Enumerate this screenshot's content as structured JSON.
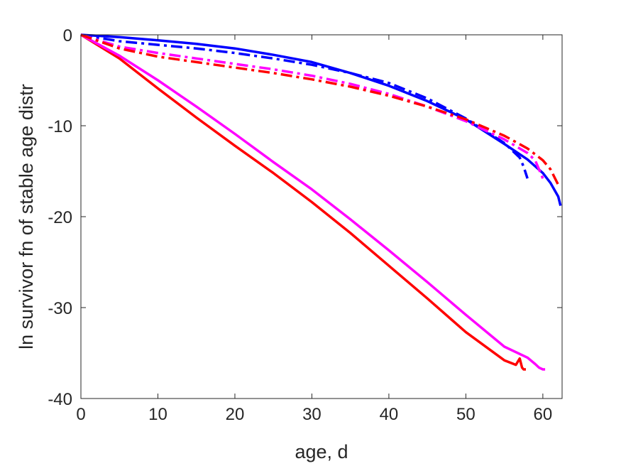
{
  "chart_data": {
    "type": "line",
    "title": "",
    "xlabel": "age, d",
    "ylabel": "ln survivor fn of stable age distr",
    "xlim": [
      0,
      62.5
    ],
    "ylim": [
      -40,
      0
    ],
    "xticks": [
      0,
      10,
      20,
      30,
      40,
      50,
      60
    ],
    "yticks": [
      0,
      -10,
      -20,
      -30,
      -40
    ],
    "xtick_labels": [
      "0",
      "10",
      "20",
      "30",
      "40",
      "50",
      "60"
    ],
    "ytick_labels": [
      "0",
      "-10",
      "-20",
      "-30",
      "-40"
    ],
    "grid": false,
    "legend": "none",
    "series": [
      {
        "color": "#ff0000",
        "style": "solid",
        "x": [
          0,
          5,
          10,
          15,
          20,
          25,
          30,
          35,
          40,
          45,
          50,
          55,
          56.5,
          57,
          57.3,
          57.5,
          57.8
        ],
        "y": [
          0,
          -2.6,
          -5.9,
          -9.1,
          -12.2,
          -15.2,
          -18.4,
          -21.8,
          -25.4,
          -29.0,
          -32.7,
          -35.8,
          -36.3,
          -35.6,
          -36.6,
          -36.8,
          -36.8
        ]
      },
      {
        "color": "#ff00ff",
        "style": "solid",
        "x": [
          0,
          5,
          10,
          15,
          20,
          25,
          30,
          35,
          40,
          45,
          50,
          55,
          58,
          59,
          59.5,
          60,
          60.3
        ],
        "y": [
          0,
          -2.3,
          -5.0,
          -7.9,
          -10.9,
          -14.0,
          -17.0,
          -20.3,
          -23.7,
          -27.2,
          -30.8,
          -34.3,
          -35.5,
          -36.2,
          -36.6,
          -36.8,
          -36.8
        ]
      },
      {
        "color": "#0000ff",
        "style": "solid",
        "x": [
          0,
          5,
          10,
          15,
          20,
          25,
          30,
          35,
          40,
          45,
          50,
          55,
          58,
          60,
          61,
          62,
          62.3
        ],
        "y": [
          0,
          -0.25,
          -0.6,
          -1.0,
          -1.5,
          -2.2,
          -3.0,
          -4.2,
          -5.6,
          -7.3,
          -9.3,
          -12.0,
          -13.7,
          -15.2,
          -16.3,
          -17.8,
          -18.8
        ]
      },
      {
        "color": "#0000ff",
        "style": "dashdot",
        "x": [
          0,
          5,
          10,
          15,
          20,
          25,
          30,
          35,
          40,
          45,
          50,
          52,
          55,
          57,
          57.5,
          58
        ],
        "y": [
          0,
          -0.7,
          -1.1,
          -1.5,
          -2.0,
          -2.6,
          -3.3,
          -4.2,
          -5.3,
          -7.0,
          -9.2,
          -10.3,
          -11.9,
          -13.5,
          -14.5,
          -15.8
        ]
      },
      {
        "color": "#ff00ff",
        "style": "dashdot",
        "x": [
          0,
          5,
          10,
          15,
          20,
          25,
          30,
          35,
          40,
          45,
          50,
          55,
          58,
          59,
          59.5,
          60
        ],
        "y": [
          0,
          -1.3,
          -2.0,
          -2.6,
          -3.2,
          -3.8,
          -4.5,
          -5.4,
          -6.5,
          -7.9,
          -9.5,
          -11.5,
          -13.0,
          -13.8,
          -14.8,
          -15.8
        ]
      },
      {
        "color": "#ff0000",
        "style": "dashdot",
        "x": [
          0,
          5,
          10,
          15,
          20,
          25,
          30,
          35,
          40,
          45,
          50,
          55,
          58,
          60,
          61,
          62
        ],
        "y": [
          0,
          -1.5,
          -2.4,
          -3.0,
          -3.6,
          -4.2,
          -4.9,
          -5.7,
          -6.7,
          -7.9,
          -9.3,
          -11.1,
          -12.5,
          -13.8,
          -14.8,
          -16.5
        ]
      }
    ]
  }
}
